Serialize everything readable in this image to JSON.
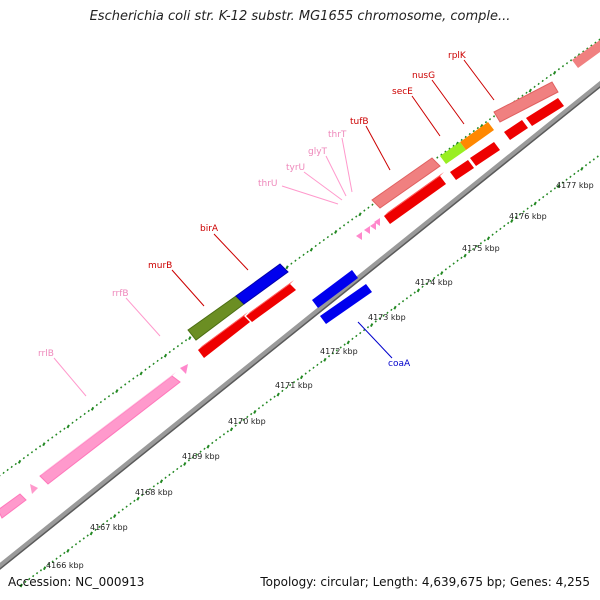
{
  "title": "Escherichia coli str. K-12 substr. MG1655 chromosome, comple...",
  "accession_label": "Accession: NC_000913",
  "topology_label": "Topology: circular; Length: 4,639,675 bp; Genes: 4,255",
  "colors": {
    "gene": "#ff0000",
    "gene_light": "#f08080",
    "rrna": "#ff99cc",
    "trna": "#ff88cc",
    "highlight_green": "#6b8e23",
    "highlight_blue": "#0000ee",
    "lime": "#99ee22",
    "orange": "#ff8800",
    "label_dark_red": "#cc0000",
    "label_pink": "#ee88bb",
    "label_blue": "#0000cc",
    "tick_green": "#228822"
  },
  "scale_labels": [
    "4166 kbp",
    "4167 kbp",
    "4168 kbp",
    "4169 kbp",
    "4170 kbp",
    "4171 kbp",
    "4172 kbp",
    "4173 kbp",
    "4174 kbp",
    "4175 kbp",
    "4176 kbp",
    "4177 kbp"
  ],
  "gene_labels": [
    {
      "name": "rrlB",
      "kind": "rrna"
    },
    {
      "name": "rrfB",
      "kind": "rrna"
    },
    {
      "name": "murB",
      "kind": "gene"
    },
    {
      "name": "birA",
      "kind": "gene"
    },
    {
      "name": "thrU",
      "kind": "trna"
    },
    {
      "name": "tyrU",
      "kind": "trna"
    },
    {
      "name": "glyT",
      "kind": "trna"
    },
    {
      "name": "thrT",
      "kind": "trna"
    },
    {
      "name": "tufB",
      "kind": "gene"
    },
    {
      "name": "secE",
      "kind": "gene"
    },
    {
      "name": "nusG",
      "kind": "gene"
    },
    {
      "name": "rplK",
      "kind": "gene"
    },
    {
      "name": "coaA",
      "kind": "highlight"
    }
  ]
}
